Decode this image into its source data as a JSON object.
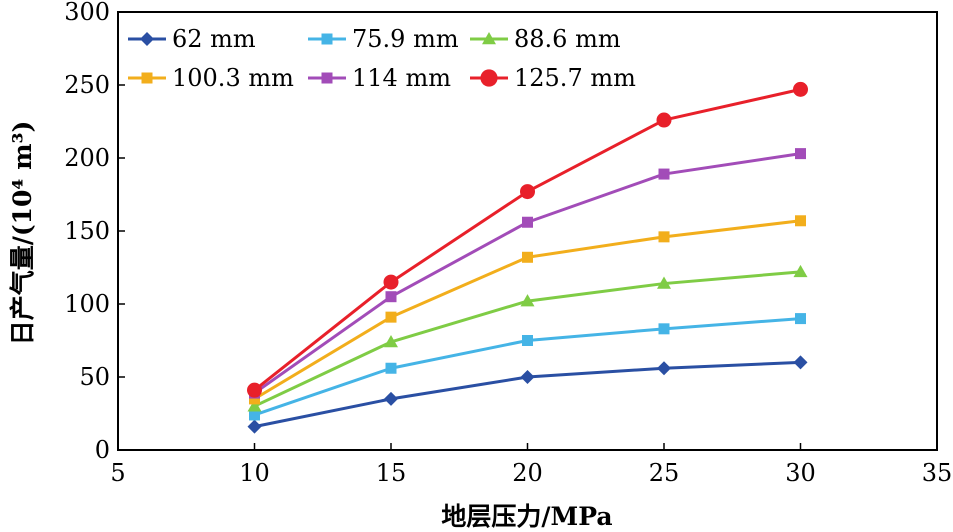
{
  "chart_data": {
    "type": "line",
    "title": "",
    "xlabel": "地层压力/MPa",
    "ylabel": "日产气量/(10⁴ m³)",
    "xlim": [
      5,
      35
    ],
    "ylim": [
      0,
      300
    ],
    "xticks": [
      5,
      10,
      15,
      20,
      25,
      30,
      35
    ],
    "yticks": [
      0,
      50,
      100,
      150,
      200,
      250,
      300
    ],
    "grid": false,
    "legend_position": "top-left, inside",
    "x": [
      10,
      15,
      20,
      25,
      30
    ],
    "series": [
      {
        "name": "62 mm",
        "marker": "diamond",
        "color": "#2a4fa3",
        "values": [
          16,
          35,
          50,
          56,
          60
        ]
      },
      {
        "name": "75.9 mm",
        "marker": "square",
        "color": "#45b4e6",
        "values": [
          24,
          56,
          75,
          83,
          90
        ]
      },
      {
        "name": "88.6 mm",
        "marker": "triangle",
        "color": "#7fcc45",
        "values": [
          30,
          74,
          102,
          114,
          122
        ]
      },
      {
        "name": "100.3 mm",
        "marker": "square",
        "color": "#f2ae1c",
        "values": [
          35,
          91,
          132,
          146,
          157
        ]
      },
      {
        "name": "114 mm",
        "marker": "square",
        "color": "#a24cb8",
        "values": [
          39,
          105,
          156,
          189,
          203
        ]
      },
      {
        "name": "125.7 mm",
        "marker": "circle",
        "color": "#e8202a",
        "values": [
          41,
          115,
          177,
          226,
          247
        ]
      }
    ]
  }
}
